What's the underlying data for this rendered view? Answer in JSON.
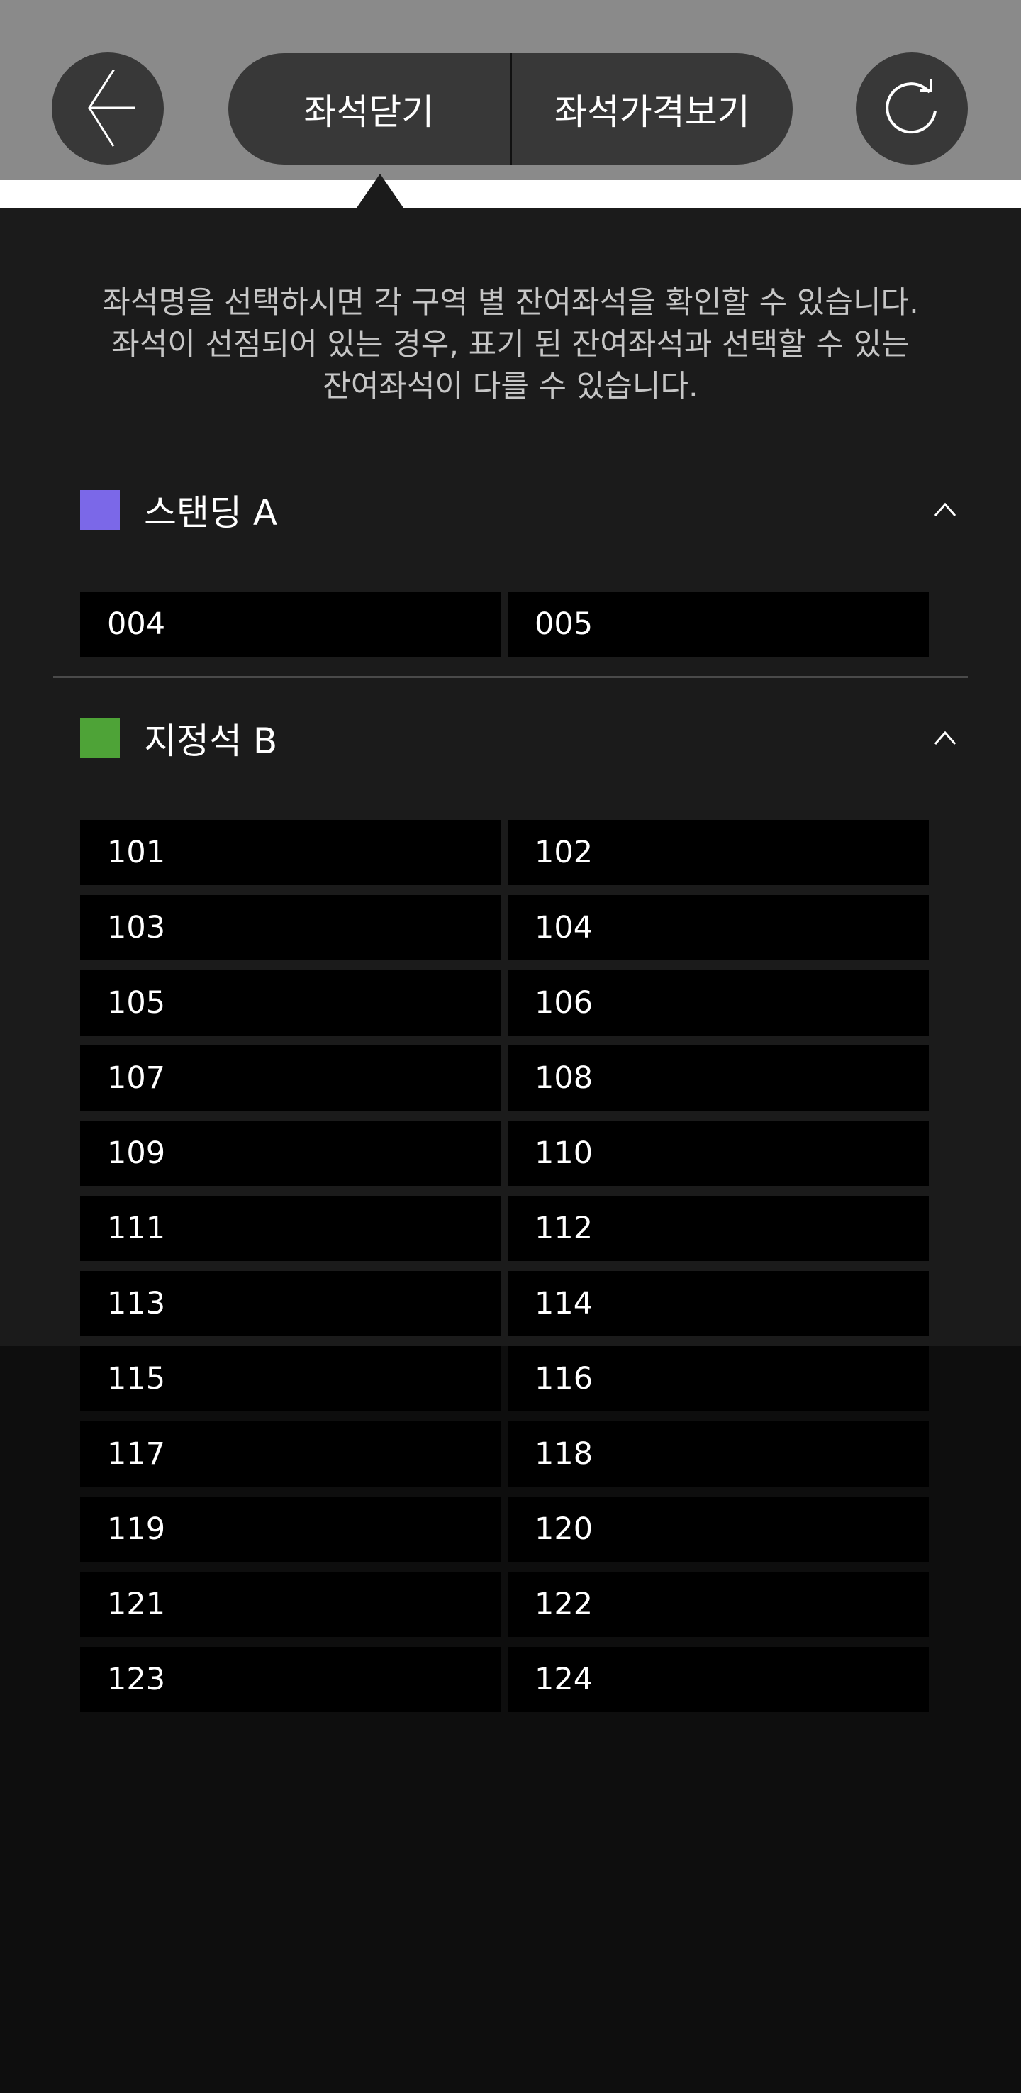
{
  "header": {
    "back_icon": "arrow-left-icon",
    "refresh_icon": "refresh-icon",
    "tabs": [
      {
        "label": "좌석닫기",
        "active": true
      },
      {
        "label": "좌석가격보기",
        "active": false
      }
    ]
  },
  "info_lines": [
    "좌석명을 선택하시면 각 구역 별 잔여좌석을 확인할 수 있습니다.",
    "좌석이 선점되어 있는 경우, 표기 된 잔여좌석과 선택할 수 있는",
    "잔여좌석이 다를 수 있습니다."
  ],
  "sections": [
    {
      "label": "스탠딩 A",
      "color": "#7b68e8",
      "expanded": true,
      "seats": [
        "004",
        "005"
      ]
    },
    {
      "label": "지정석 B",
      "color": "#4ea337",
      "expanded": true,
      "seats": [
        "101",
        "102",
        "103",
        "104",
        "105",
        "106",
        "107",
        "108",
        "109",
        "110",
        "111",
        "112",
        "113",
        "114",
        "115",
        "116",
        "117",
        "118",
        "119",
        "120",
        "121",
        "122",
        "123",
        "124"
      ]
    }
  ]
}
